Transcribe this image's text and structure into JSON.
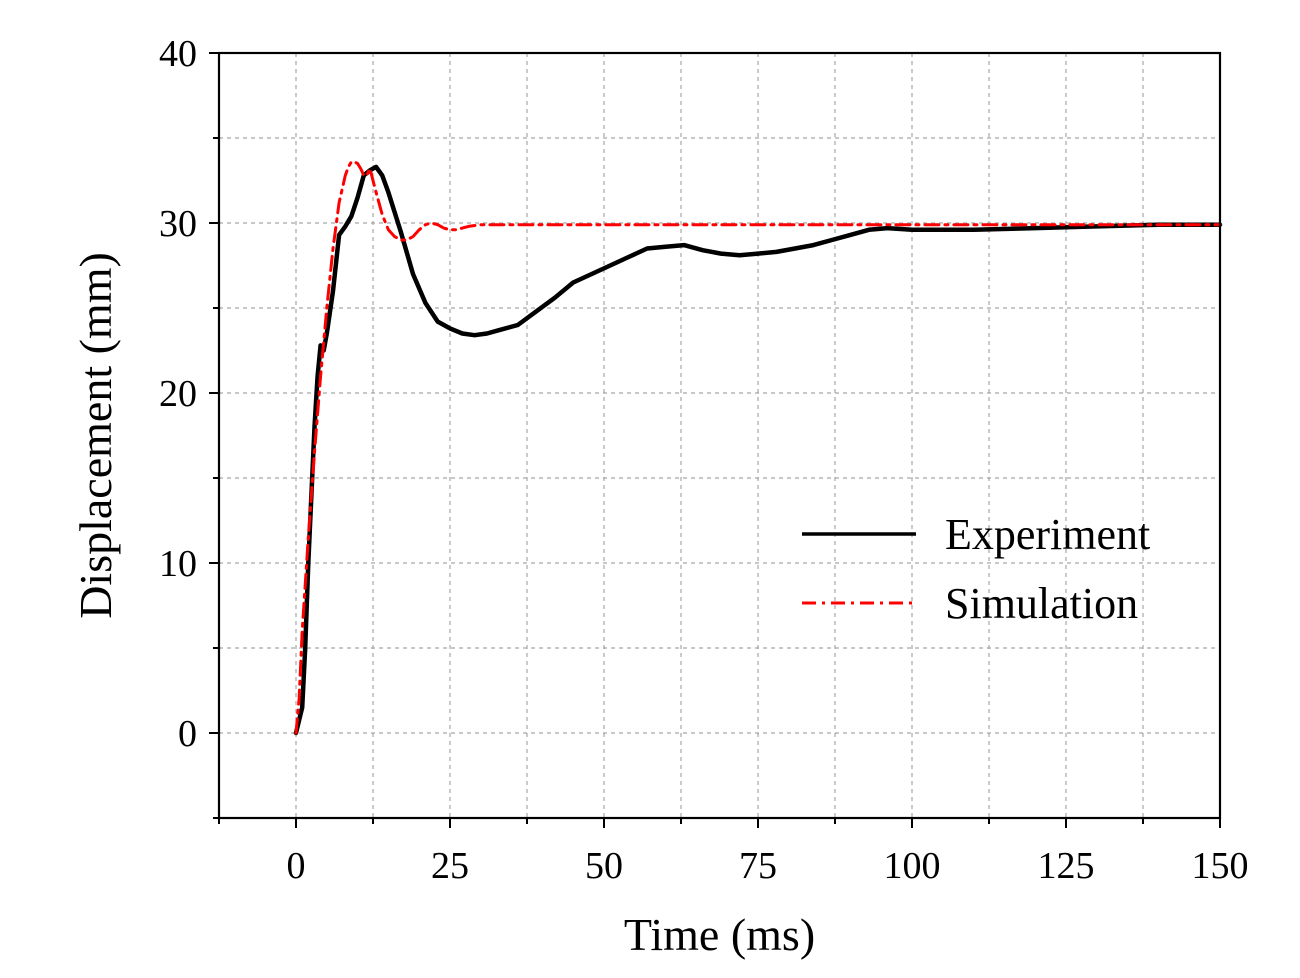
{
  "chart_data": {
    "type": "line",
    "title": "",
    "xlabel": "Time (ms)",
    "ylabel": "Displacement (mm)",
    "xlim": [
      -12.5,
      150
    ],
    "ylim": [
      -5,
      40
    ],
    "xticks": [
      0,
      25,
      50,
      75,
      100,
      125,
      150
    ],
    "yticks": [
      0,
      10,
      20,
      30,
      40
    ],
    "xtick_labels": [
      "0",
      "25",
      "50",
      "75",
      "100",
      "125",
      "150"
    ],
    "ytick_labels": [
      "0",
      "10",
      "20",
      "30",
      "40"
    ],
    "grid": true,
    "legend_position": "center-right",
    "series": [
      {
        "name": "Experiment",
        "color": "#000000",
        "style": "solid",
        "x": [
          0,
          1,
          1.5,
          2,
          2.5,
          3,
          3.5,
          4,
          4.5,
          5,
          6,
          7,
          8,
          9,
          10,
          11,
          12,
          13,
          14,
          15,
          17,
          19,
          21,
          23,
          25,
          27,
          29,
          31,
          33,
          36,
          39,
          42,
          45,
          48,
          51,
          54,
          57,
          60,
          63,
          66,
          69,
          72,
          75,
          78,
          81,
          84,
          87,
          90,
          93,
          96,
          100,
          110,
          120,
          130,
          140,
          150
        ],
        "y": [
          0,
          1.5,
          5,
          10,
          14,
          18,
          21,
          22.8,
          22.5,
          23.5,
          26,
          29.3,
          29.8,
          30.4,
          31.5,
          32.8,
          33.1,
          33.3,
          32.8,
          31.8,
          29.5,
          27,
          25.3,
          24.2,
          23.8,
          23.5,
          23.4,
          23.5,
          23.7,
          24,
          24.8,
          25.6,
          26.5,
          27,
          27.5,
          28,
          28.5,
          28.6,
          28.7,
          28.4,
          28.2,
          28.1,
          28.2,
          28.3,
          28.5,
          28.7,
          29,
          29.3,
          29.6,
          29.7,
          29.6,
          29.6,
          29.7,
          29.8,
          29.9,
          29.9
        ]
      },
      {
        "name": "Simulation",
        "color": "#ff0000",
        "style": "dash-dot",
        "x": [
          0,
          0.5,
          1,
          2,
          3,
          4,
          5,
          6,
          7,
          8,
          8.5,
          9,
          9.5,
          10,
          10.5,
          11,
          11.5,
          12,
          13,
          14,
          15,
          16,
          17,
          18,
          19,
          20,
          21,
          22,
          23,
          24,
          25,
          26,
          27,
          28,
          30,
          35,
          40,
          60,
          80,
          100,
          120,
          150
        ],
        "y": [
          0,
          2,
          6,
          11.5,
          16.5,
          21,
          25,
          28.5,
          31.2,
          32.8,
          33.3,
          33.6,
          33.6,
          33.5,
          33.2,
          32.8,
          32.8,
          33.2,
          31.8,
          30.5,
          29.6,
          29.2,
          29.0,
          29.0,
          29.2,
          29.6,
          29.9,
          30.0,
          29.9,
          29.7,
          29.6,
          29.6,
          29.7,
          29.8,
          29.9,
          29.9,
          29.9,
          29.9,
          29.9,
          29.9,
          29.9,
          29.9
        ]
      }
    ]
  }
}
